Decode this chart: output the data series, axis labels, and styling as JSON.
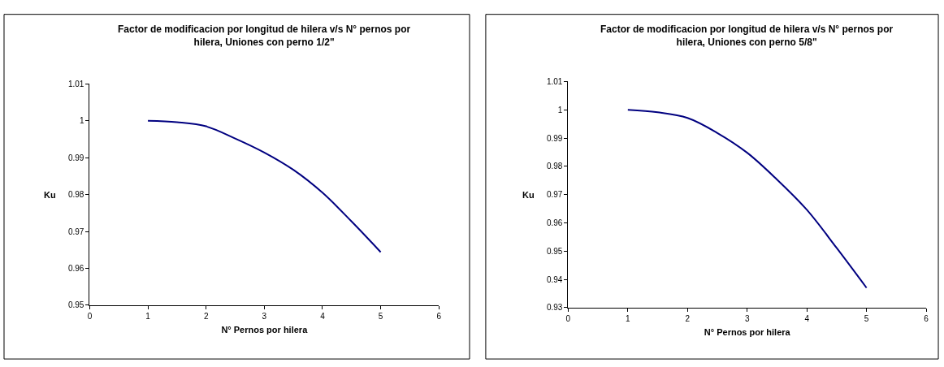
{
  "chart_data": [
    {
      "type": "line",
      "title": "Factor de modificacion por longitud de hilera v/s N° pernos por hilera, Uniones con perno 1/2\"",
      "xlabel": "N° Pernos por hilera",
      "ylabel": "Ku",
      "x": [
        1,
        1.5,
        2,
        2.5,
        3,
        3.5,
        4,
        4.5,
        5
      ],
      "series": [
        {
          "color": "#000080",
          "values": [
            1.0,
            0.9996,
            0.9985,
            0.9952,
            0.9914,
            0.9867,
            0.9805,
            0.9727,
            0.9644
          ]
        }
      ],
      "xlim": [
        0,
        6
      ],
      "xticks": [
        0,
        1,
        2,
        3,
        4,
        5,
        6
      ],
      "ylim": [
        0.95,
        1.01
      ],
      "yticks": [
        0.95,
        0.96,
        0.97,
        0.98,
        0.99,
        {
          "value": 1,
          "label": "1"
        },
        1.01
      ],
      "marker": "none",
      "line_style": "solid"
    },
    {
      "type": "line",
      "title": "Factor de modificacion por longitud de hilera v/s N° pernos por hilera, Uniones con perno 5/8\"",
      "xlabel": "N° Pernos por hilera",
      "ylabel": "Ku",
      "x": [
        1,
        1.5,
        2,
        2.5,
        3,
        3.5,
        4,
        4.5,
        5
      ],
      "series": [
        {
          "color": "#000080",
          "values": [
            1.0,
            0.9991,
            0.9971,
            0.9918,
            0.9848,
            0.9753,
            0.9646,
            0.9511,
            0.937
          ]
        }
      ],
      "xlim": [
        0,
        6
      ],
      "xticks": [
        0,
        1,
        2,
        3,
        4,
        5,
        6
      ],
      "ylim": [
        0.93,
        1.01
      ],
      "yticks": [
        0.93,
        0.94,
        0.95,
        0.96,
        0.97,
        0.98,
        0.99,
        {
          "value": 1,
          "label": "1"
        },
        1.01
      ],
      "marker": "none",
      "line_style": "solid"
    }
  ]
}
